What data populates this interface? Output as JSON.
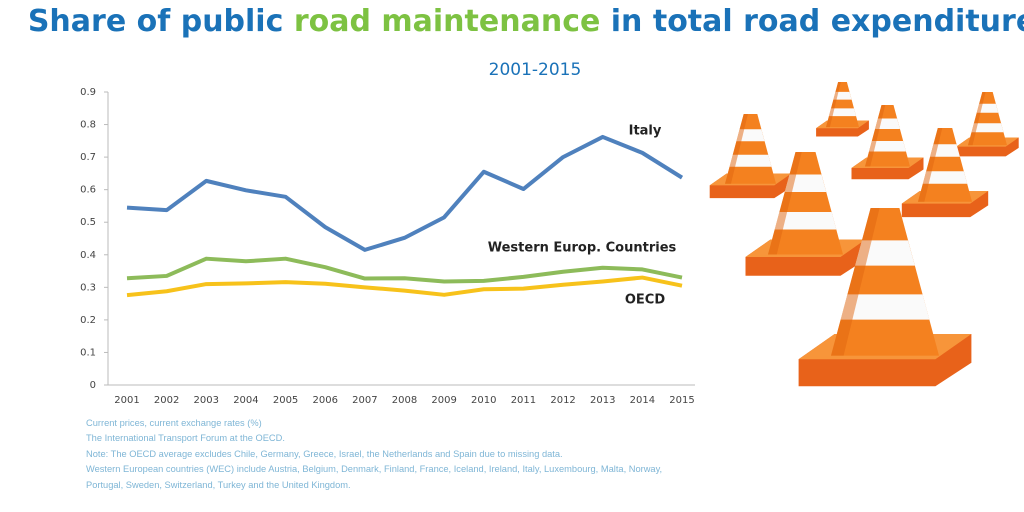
{
  "chart_data": {
    "type": "line",
    "title_segments": [
      "Share of public ",
      "road maintenance",
      " in total road expenditure"
    ],
    "title_colors": [
      "#1a72b8",
      "#7dc242",
      "#1a72b8"
    ],
    "subtitle": "2001-2015",
    "categories": [
      "2001",
      "2002",
      "2003",
      "2004",
      "2005",
      "2006",
      "2007",
      "2008",
      "2009",
      "2010",
      "2011",
      "2012",
      "2013",
      "2014",
      "2015"
    ],
    "series": [
      {
        "name": "Italy",
        "color": "#4f81bd",
        "values": [
          0.545,
          0.537,
          0.627,
          0.598,
          0.578,
          0.485,
          0.415,
          0.452,
          0.515,
          0.655,
          0.602,
          0.7,
          0.762,
          0.713,
          0.637
        ]
      },
      {
        "name": "Western Europ. Countries",
        "color": "#8dbb5a",
        "values": [
          0.328,
          0.335,
          0.388,
          0.38,
          0.388,
          0.362,
          0.327,
          0.328,
          0.318,
          0.32,
          0.332,
          0.348,
          0.36,
          0.355,
          0.33
        ]
      },
      {
        "name": "OECD",
        "color": "#f7c21b",
        "values": [
          0.276,
          0.288,
          0.31,
          0.312,
          0.316,
          0.311,
          0.3,
          0.29,
          0.277,
          0.294,
          0.296,
          0.308,
          0.318,
          0.33,
          0.305
        ]
      }
    ],
    "ylim": [
      0,
      0.9
    ],
    "yticks": [
      0,
      0.1,
      0.2,
      0.3,
      0.4,
      0.5,
      0.6,
      0.7,
      0.8,
      0.9
    ],
    "grid": false,
    "notes": [
      "Current prices, current exchange rates (%)",
      "The International Transport Forum at the OECD.",
      "Note: The OECD average excludes Chile, Germany, Greece, Israel, the Netherlands and Spain due to missing data.",
      "Western European countries (WEC) include Austria, Belgium, Denmark, Finland, France, Iceland, Ireland, Italy, Luxembourg, Malta, Norway, Portugal, Sweden, Switzerland, Turkey and the United Kingdom."
    ]
  }
}
